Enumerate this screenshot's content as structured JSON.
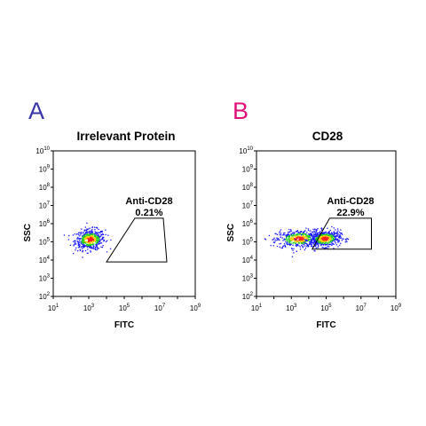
{
  "panels": [
    {
      "letter": "A",
      "letter_color": "#3a35a8"
    },
    {
      "letter": "B",
      "letter_color": "#e0127a"
    }
  ],
  "chart_data": [
    {
      "type": "scatter",
      "title": "Irrelevant Protein",
      "xlabel": "FITC",
      "ylabel": "SSC",
      "xscale": "log",
      "yscale": "log",
      "x_ticks": [
        "10^1",
        "10^3",
        "10^5",
        "10^7",
        "10^9"
      ],
      "y_ticks": [
        "10^2",
        "10^3",
        "10^4",
        "10^5",
        "10^6",
        "10^7",
        "10^8",
        "10^9",
        "10^10"
      ],
      "xlim": [
        10,
        1000000000
      ],
      "ylim": [
        100,
        10000000000
      ],
      "gate": {
        "name": "Anti-CD28",
        "percent": "0.21%",
        "vertices_log10": [
          [
            5.6,
            6.3
          ],
          [
            7.2,
            6.3
          ],
          [
            7.4,
            3.9
          ],
          [
            4.0,
            3.9
          ]
        ]
      },
      "populations": [
        {
          "center_log10": [
            3.05,
            5.15
          ],
          "spread_log10": [
            0.42,
            0.28
          ]
        }
      ]
    },
    {
      "type": "scatter",
      "title": "CD28",
      "xlabel": "FITC",
      "ylabel": "SSC",
      "xscale": "log",
      "yscale": "log",
      "x_ticks": [
        "10^1",
        "10^3",
        "10^5",
        "10^7",
        "10^9"
      ],
      "y_ticks": [
        "10^2",
        "10^3",
        "10^4",
        "10^5",
        "10^6",
        "10^7",
        "10^8",
        "10^9",
        "10^10"
      ],
      "xlim": [
        10,
        1000000000
      ],
      "ylim": [
        100,
        10000000000
      ],
      "gate": {
        "name": "Anti-CD28",
        "percent": "22.9%",
        "vertices_log10": [
          [
            5.2,
            6.3
          ],
          [
            7.6,
            6.3
          ],
          [
            7.6,
            4.6
          ],
          [
            4.2,
            4.6
          ]
        ]
      },
      "populations": [
        {
          "center_log10": [
            3.4,
            5.2
          ],
          "spread_log10": [
            0.65,
            0.24
          ]
        },
        {
          "center_log10": [
            4.9,
            5.2
          ],
          "spread_log10": [
            0.45,
            0.22
          ]
        }
      ]
    }
  ],
  "colors": {
    "density_low": "#1a1aff",
    "density_mid": "#22cc22",
    "density_high": "#ffcc00",
    "density_peak": "#ff2020"
  }
}
